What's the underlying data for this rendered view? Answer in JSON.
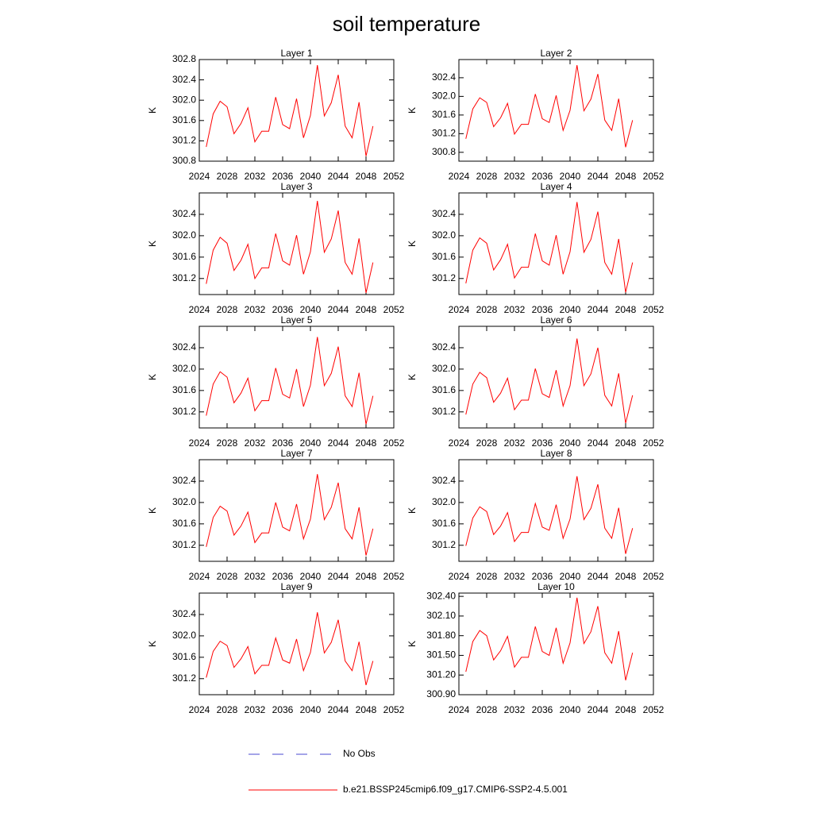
{
  "title": "soil temperature",
  "legend": [
    {
      "name": "No Obs",
      "color": "#4a4ad0",
      "dash": true
    },
    {
      "name": "b.e21.BSSP245cmip6.f09_g17.CMIP6-SSP2-4.5.001",
      "color": "#ff0000",
      "dash": false
    }
  ],
  "chart_data": [
    {
      "type": "line",
      "title": "Layer 1",
      "ylabel": "K",
      "color": "#ff0000",
      "x": [
        2025,
        2026,
        2027,
        2028,
        2029,
        2030,
        2031,
        2032,
        2033,
        2034,
        2035,
        2036,
        2037,
        2038,
        2039,
        2040,
        2041,
        2042,
        2043,
        2044,
        2045,
        2046,
        2047,
        2048,
        2049
      ],
      "values": [
        301.08,
        301.73,
        301.98,
        301.87,
        301.34,
        301.54,
        301.85,
        301.18,
        301.39,
        301.39,
        302.06,
        301.52,
        301.44,
        302.03,
        301.26,
        301.7,
        302.69,
        301.69,
        301.95,
        302.5,
        301.49,
        301.26,
        301.96,
        300.9,
        301.49
      ],
      "xlim": [
        2024,
        2052
      ],
      "xticks": [
        2024,
        2028,
        2032,
        2036,
        2040,
        2044,
        2048,
        2052
      ],
      "ylim": [
        300.8,
        302.8
      ],
      "yticks": [
        300.8,
        301.2,
        301.6,
        {
          "value": 302.0,
          "label": "302.0"
        },
        302.4,
        302.8
      ]
    },
    {
      "type": "line",
      "title": "Layer 2",
      "ylabel": "K",
      "color": "#ff0000",
      "x": [
        2025,
        2026,
        2027,
        2028,
        2029,
        2030,
        2031,
        2032,
        2033,
        2034,
        2035,
        2036,
        2037,
        2038,
        2039,
        2040,
        2041,
        2042,
        2043,
        2044,
        2045,
        2046,
        2047,
        2048,
        2049
      ],
      "values": [
        301.09,
        301.73,
        301.97,
        301.87,
        301.35,
        301.54,
        301.85,
        301.19,
        301.4,
        301.4,
        302.05,
        301.52,
        301.44,
        302.02,
        301.27,
        301.7,
        302.67,
        301.69,
        301.94,
        302.48,
        301.49,
        301.27,
        301.95,
        300.91,
        301.49
      ],
      "xlim": [
        2024,
        2052
      ],
      "xticks": [
        2024,
        2028,
        2032,
        2036,
        2040,
        2044,
        2048,
        2052
      ],
      "ylim": [
        300.61,
        302.79
      ],
      "yticks": [
        300.8,
        301.2,
        301.6,
        {
          "value": 302.0,
          "label": "302.0"
        },
        302.4
      ]
    },
    {
      "type": "line",
      "title": "Layer 3",
      "ylabel": "K",
      "color": "#ff0000",
      "x": [
        2025,
        2026,
        2027,
        2028,
        2029,
        2030,
        2031,
        2032,
        2033,
        2034,
        2035,
        2036,
        2037,
        2038,
        2039,
        2040,
        2041,
        2042,
        2043,
        2044,
        2045,
        2046,
        2047,
        2048,
        2049
      ],
      "values": [
        301.1,
        301.73,
        301.97,
        301.86,
        301.35,
        301.54,
        301.84,
        301.2,
        301.4,
        301.4,
        302.04,
        301.53,
        301.45,
        302.01,
        301.28,
        301.7,
        302.65,
        301.69,
        301.94,
        302.47,
        301.5,
        301.28,
        301.95,
        300.93,
        301.5
      ],
      "xlim": [
        2024,
        2052
      ],
      "xticks": [
        2024,
        2028,
        2032,
        2036,
        2040,
        2044,
        2048,
        2052
      ],
      "ylim": [
        300.9,
        302.8
      ],
      "yticks": [
        301.2,
        301.6,
        {
          "value": 302.0,
          "label": "302.0"
        },
        302.4
      ]
    },
    {
      "type": "line",
      "title": "Layer 4",
      "ylabel": "K",
      "color": "#ff0000",
      "x": [
        2025,
        2026,
        2027,
        2028,
        2029,
        2030,
        2031,
        2032,
        2033,
        2034,
        2035,
        2036,
        2037,
        2038,
        2039,
        2040,
        2041,
        2042,
        2043,
        2044,
        2045,
        2046,
        2047,
        2048,
        2049
      ],
      "values": [
        301.11,
        301.73,
        301.96,
        301.86,
        301.36,
        301.55,
        301.84,
        301.21,
        301.41,
        301.41,
        302.04,
        301.53,
        301.45,
        302.01,
        301.28,
        301.7,
        302.63,
        301.69,
        301.93,
        302.45,
        301.5,
        301.28,
        301.94,
        300.94,
        301.5
      ],
      "xlim": [
        2024,
        2052
      ],
      "xticks": [
        2024,
        2028,
        2032,
        2036,
        2040,
        2044,
        2048,
        2052
      ],
      "ylim": [
        300.9,
        302.8
      ],
      "yticks": [
        301.2,
        301.6,
        {
          "value": 302.0,
          "label": "302.0"
        },
        302.4
      ]
    },
    {
      "type": "line",
      "title": "Layer 5",
      "ylabel": "K",
      "color": "#ff0000",
      "x": [
        2025,
        2026,
        2027,
        2028,
        2029,
        2030,
        2031,
        2032,
        2033,
        2034,
        2035,
        2036,
        2037,
        2038,
        2039,
        2040,
        2041,
        2042,
        2043,
        2044,
        2045,
        2046,
        2047,
        2048,
        2049
      ],
      "values": [
        301.13,
        301.72,
        301.95,
        301.85,
        301.37,
        301.55,
        301.83,
        301.22,
        301.41,
        301.41,
        302.02,
        301.53,
        301.46,
        302.0,
        301.3,
        301.7,
        302.6,
        301.69,
        301.92,
        302.42,
        301.5,
        301.3,
        301.93,
        300.97,
        301.5
      ],
      "xlim": [
        2024,
        2052
      ],
      "xticks": [
        2024,
        2028,
        2032,
        2036,
        2040,
        2044,
        2048,
        2052
      ],
      "ylim": [
        300.9,
        302.8
      ],
      "yticks": [
        301.2,
        301.6,
        {
          "value": 302.0,
          "label": "302.0"
        },
        302.4
      ]
    },
    {
      "type": "line",
      "title": "Layer 6",
      "ylabel": "K",
      "color": "#ff0000",
      "x": [
        2025,
        2026,
        2027,
        2028,
        2029,
        2030,
        2031,
        2032,
        2033,
        2034,
        2035,
        2036,
        2037,
        2038,
        2039,
        2040,
        2041,
        2042,
        2043,
        2044,
        2045,
        2046,
        2047,
        2048,
        2049
      ],
      "values": [
        301.15,
        301.72,
        301.94,
        301.84,
        301.38,
        301.55,
        301.83,
        301.24,
        301.42,
        301.42,
        302.01,
        301.54,
        301.47,
        301.98,
        301.31,
        301.69,
        302.57,
        301.69,
        301.91,
        302.4,
        301.51,
        301.31,
        301.92,
        300.99,
        301.51
      ],
      "xlim": [
        2024,
        2052
      ],
      "xticks": [
        2024,
        2028,
        2032,
        2036,
        2040,
        2044,
        2048,
        2052
      ],
      "ylim": [
        300.9,
        302.8
      ],
      "yticks": [
        301.2,
        301.6,
        {
          "value": 302.0,
          "label": "302.0"
        },
        302.4
      ]
    },
    {
      "type": "line",
      "title": "Layer 7",
      "ylabel": "K",
      "color": "#ff0000",
      "x": [
        2025,
        2026,
        2027,
        2028,
        2029,
        2030,
        2031,
        2032,
        2033,
        2034,
        2035,
        2036,
        2037,
        2038,
        2039,
        2040,
        2041,
        2042,
        2043,
        2044,
        2045,
        2046,
        2047,
        2048,
        2049
      ],
      "values": [
        301.17,
        301.72,
        301.93,
        301.84,
        301.39,
        301.56,
        301.82,
        301.25,
        301.43,
        301.43,
        302.0,
        301.54,
        301.47,
        301.97,
        301.32,
        301.69,
        302.53,
        301.68,
        301.91,
        302.37,
        301.51,
        301.32,
        301.91,
        301.01,
        301.51
      ],
      "xlim": [
        2024,
        2052
      ],
      "xticks": [
        2024,
        2028,
        2032,
        2036,
        2040,
        2044,
        2048,
        2052
      ],
      "ylim": [
        300.9,
        302.8
      ],
      "yticks": [
        301.2,
        301.6,
        {
          "value": 302.0,
          "label": "302.0"
        },
        302.4
      ]
    },
    {
      "type": "line",
      "title": "Layer 8",
      "ylabel": "K",
      "color": "#ff0000",
      "x": [
        2025,
        2026,
        2027,
        2028,
        2029,
        2030,
        2031,
        2032,
        2033,
        2034,
        2035,
        2036,
        2037,
        2038,
        2039,
        2040,
        2041,
        2042,
        2043,
        2044,
        2045,
        2046,
        2047,
        2048,
        2049
      ],
      "values": [
        301.19,
        301.71,
        301.92,
        301.83,
        301.4,
        301.56,
        301.81,
        301.27,
        301.44,
        301.44,
        301.98,
        301.54,
        301.48,
        301.96,
        301.33,
        301.69,
        302.49,
        301.68,
        301.89,
        302.34,
        301.52,
        301.33,
        301.9,
        301.04,
        301.52
      ],
      "xlim": [
        2024,
        2052
      ],
      "xticks": [
        2024,
        2028,
        2032,
        2036,
        2040,
        2044,
        2048,
        2052
      ],
      "ylim": [
        300.9,
        302.8
      ],
      "yticks": [
        301.2,
        301.6,
        {
          "value": 302.0,
          "label": "302.0"
        },
        302.4
      ]
    },
    {
      "type": "line",
      "title": "Layer 9",
      "ylabel": "K",
      "color": "#ff0000",
      "x": [
        2025,
        2026,
        2027,
        2028,
        2029,
        2030,
        2031,
        2032,
        2033,
        2034,
        2035,
        2036,
        2037,
        2038,
        2039,
        2040,
        2041,
        2042,
        2043,
        2044,
        2045,
        2046,
        2047,
        2048,
        2049
      ],
      "values": [
        301.22,
        301.71,
        301.9,
        301.82,
        301.41,
        301.57,
        301.8,
        301.29,
        301.45,
        301.45,
        301.96,
        301.55,
        301.49,
        301.94,
        301.35,
        301.69,
        302.44,
        301.68,
        301.88,
        302.3,
        301.53,
        301.35,
        301.89,
        301.08,
        301.53
      ],
      "xlim": [
        2024,
        2052
      ],
      "xticks": [
        2024,
        2028,
        2032,
        2036,
        2040,
        2044,
        2048,
        2052
      ],
      "ylim": [
        300.9,
        302.8
      ],
      "yticks": [
        301.2,
        301.6,
        {
          "value": 302.0,
          "label": "302.0"
        },
        302.4
      ]
    },
    {
      "type": "line",
      "title": "Layer 10",
      "ylabel": "K",
      "color": "#ff0000",
      "x": [
        2025,
        2026,
        2027,
        2028,
        2029,
        2030,
        2031,
        2032,
        2033,
        2034,
        2035,
        2036,
        2037,
        2038,
        2039,
        2040,
        2041,
        2042,
        2043,
        2044,
        2045,
        2046,
        2047,
        2048,
        2049
      ],
      "values": [
        301.25,
        301.71,
        301.88,
        301.8,
        301.43,
        301.57,
        301.79,
        301.32,
        301.47,
        301.47,
        301.94,
        301.56,
        301.5,
        301.92,
        301.38,
        301.69,
        302.38,
        301.68,
        301.86,
        302.25,
        301.54,
        301.38,
        301.87,
        301.12,
        301.54
      ],
      "xlim": [
        2024,
        2052
      ],
      "xticks": [
        2024,
        2028,
        2032,
        2036,
        2040,
        2044,
        2048,
        2052
      ],
      "ylim": [
        300.9,
        302.45
      ],
      "yticks": [
        {
          "value": 300.9,
          "label": "300.90"
        },
        {
          "value": 301.2,
          "label": "301.20"
        },
        {
          "value": 301.5,
          "label": "301.50"
        },
        {
          "value": 301.8,
          "label": "301.80"
        },
        {
          "value": 302.1,
          "label": "302.10"
        },
        {
          "value": 302.4,
          "label": "302.40"
        }
      ]
    }
  ]
}
